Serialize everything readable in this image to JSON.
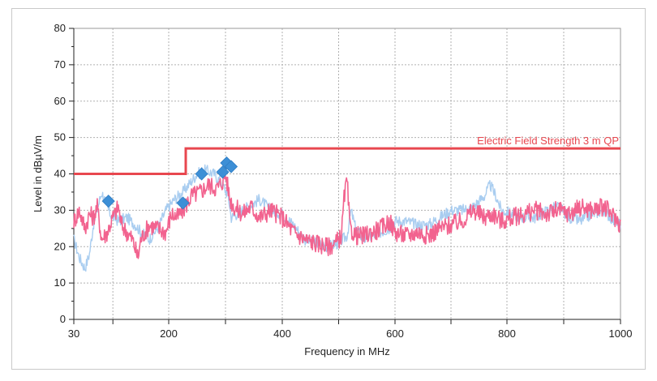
{
  "chart_data": {
    "type": "line",
    "xlabel": "Frequency in MHz",
    "ylabel": "Level in dBµV/m",
    "xlim": [
      30,
      1000
    ],
    "ylim": [
      0,
      80
    ],
    "x_tick_labels": [
      "30",
      "200",
      "400",
      "600",
      "800",
      "1000"
    ],
    "x_tick_values": [
      30,
      200,
      400,
      600,
      800,
      1000
    ],
    "x_minor_ticks": [
      100,
      300,
      500,
      700,
      900
    ],
    "y_tick_labels": [
      "0",
      "10",
      "20",
      "30",
      "40",
      "50",
      "60",
      "70",
      "80"
    ],
    "y_tick_values": [
      0,
      10,
      20,
      30,
      40,
      50,
      60,
      70,
      80
    ],
    "grid": true,
    "limit_line": {
      "label": "Electric Field Strength 3 m QP",
      "color": "#e8474f",
      "segments": [
        {
          "x": [
            30,
            230
          ],
          "y": 40
        },
        {
          "x": [
            230,
            1000
          ],
          "y": 47
        }
      ]
    },
    "series": [
      {
        "color": "#a9cdf0",
        "points": [
          [
            30,
            22
          ],
          [
            40,
            17
          ],
          [
            50,
            14
          ],
          [
            58,
            18
          ],
          [
            65,
            26
          ],
          [
            80,
            35
          ],
          [
            95,
            29
          ],
          [
            110,
            27
          ],
          [
            125,
            28
          ],
          [
            140,
            26
          ],
          [
            150,
            24
          ],
          [
            165,
            22
          ],
          [
            180,
            25
          ],
          [
            195,
            30
          ],
          [
            210,
            33
          ],
          [
            225,
            35
          ],
          [
            240,
            38
          ],
          [
            250,
            40
          ],
          [
            265,
            41
          ],
          [
            280,
            40
          ],
          [
            295,
            37
          ],
          [
            305,
            34
          ],
          [
            310,
            28
          ],
          [
            320,
            29
          ],
          [
            340,
            31
          ],
          [
            360,
            33
          ],
          [
            380,
            30
          ],
          [
            400,
            29
          ],
          [
            420,
            26
          ],
          [
            440,
            22
          ],
          [
            460,
            21
          ],
          [
            480,
            20
          ],
          [
            500,
            21
          ],
          [
            515,
            23
          ],
          [
            522,
            30
          ],
          [
            530,
            25
          ],
          [
            545,
            22
          ],
          [
            560,
            23
          ],
          [
            575,
            24
          ],
          [
            590,
            25
          ],
          [
            600,
            27
          ],
          [
            620,
            27
          ],
          [
            640,
            26
          ],
          [
            660,
            26
          ],
          [
            680,
            28
          ],
          [
            700,
            30
          ],
          [
            720,
            30
          ],
          [
            740,
            31
          ],
          [
            760,
            34
          ],
          [
            770,
            37
          ],
          [
            780,
            34
          ],
          [
            790,
            30
          ],
          [
            810,
            29
          ],
          [
            830,
            28
          ],
          [
            850,
            28
          ],
          [
            870,
            30
          ],
          [
            890,
            31
          ],
          [
            910,
            28
          ],
          [
            930,
            27
          ],
          [
            950,
            29
          ],
          [
            970,
            30
          ],
          [
            990,
            27
          ],
          [
            1000,
            26
          ]
        ]
      },
      {
        "color": "#f2638f",
        "points": [
          [
            30,
            27
          ],
          [
            40,
            30
          ],
          [
            50,
            25
          ],
          [
            58,
            29
          ],
          [
            65,
            28
          ],
          [
            72,
            31
          ],
          [
            80,
            22
          ],
          [
            90,
            24
          ],
          [
            100,
            28
          ],
          [
            110,
            31
          ],
          [
            115,
            26
          ],
          [
            125,
            24
          ],
          [
            135,
            22
          ],
          [
            145,
            17
          ],
          [
            150,
            22
          ],
          [
            165,
            26
          ],
          [
            180,
            25
          ],
          [
            195,
            24
          ],
          [
            205,
            29
          ],
          [
            215,
            28
          ],
          [
            225,
            30
          ],
          [
            240,
            34
          ],
          [
            255,
            35
          ],
          [
            270,
            37
          ],
          [
            285,
            36
          ],
          [
            295,
            38
          ],
          [
            300,
            40
          ],
          [
            308,
            33
          ],
          [
            315,
            31
          ],
          [
            330,
            29
          ],
          [
            345,
            31
          ],
          [
            360,
            28
          ],
          [
            380,
            30
          ],
          [
            400,
            28
          ],
          [
            420,
            24
          ],
          [
            440,
            22
          ],
          [
            460,
            21
          ],
          [
            480,
            20
          ],
          [
            495,
            21
          ],
          [
            505,
            23
          ],
          [
            510,
            34
          ],
          [
            515,
            38
          ],
          [
            520,
            25
          ],
          [
            530,
            23
          ],
          [
            545,
            23
          ],
          [
            560,
            24
          ],
          [
            575,
            25
          ],
          [
            590,
            27
          ],
          [
            600,
            24
          ],
          [
            620,
            23
          ],
          [
            640,
            24
          ],
          [
            660,
            23
          ],
          [
            680,
            25
          ],
          [
            700,
            26
          ],
          [
            720,
            27
          ],
          [
            740,
            30
          ],
          [
            760,
            28
          ],
          [
            775,
            29
          ],
          [
            790,
            27
          ],
          [
            810,
            28
          ],
          [
            830,
            29
          ],
          [
            850,
            30
          ],
          [
            870,
            29
          ],
          [
            890,
            30
          ],
          [
            910,
            29
          ],
          [
            930,
            31
          ],
          [
            950,
            30
          ],
          [
            970,
            31
          ],
          [
            990,
            28
          ],
          [
            1000,
            26
          ]
        ]
      }
    ],
    "markers": {
      "color": "#3d8fd6",
      "points": [
        [
          92,
          32.5
        ],
        [
          225,
          32
        ],
        [
          258,
          40
        ],
        [
          295,
          40.5
        ],
        [
          302,
          43
        ],
        [
          310,
          42
        ]
      ]
    }
  }
}
